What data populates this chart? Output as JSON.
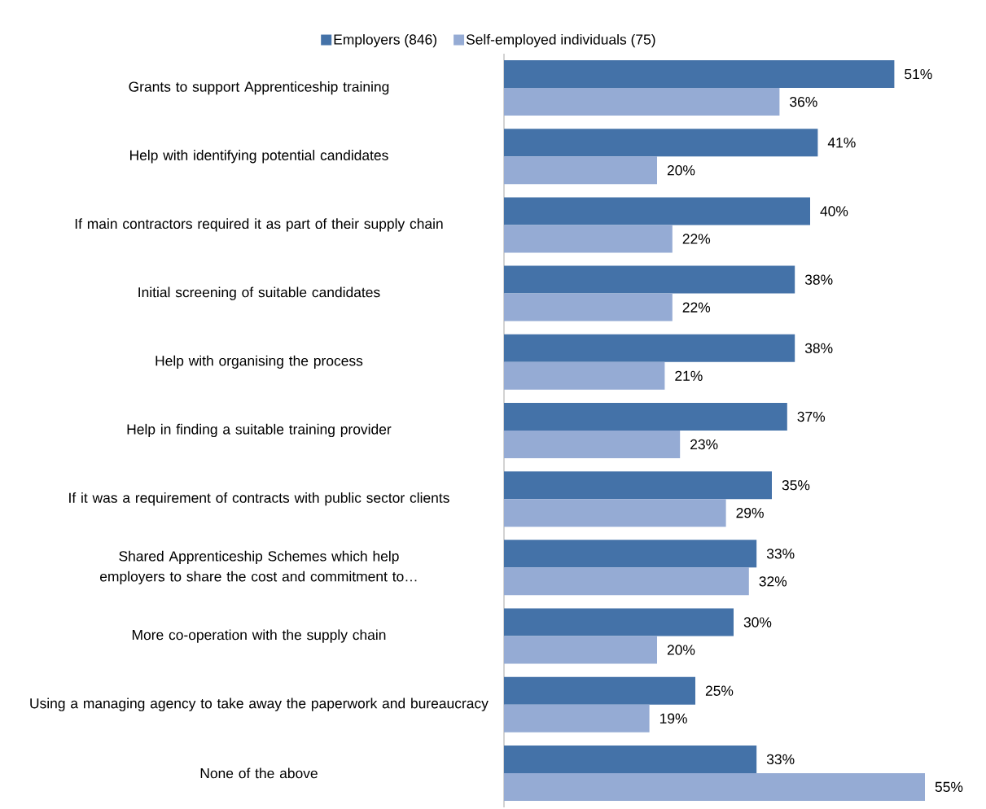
{
  "chart_data": {
    "type": "bar",
    "orientation": "horizontal",
    "legend": "top",
    "categories": [
      "Grants to support Apprenticeship training",
      "Help with identifying potential candidates",
      "If main contractors required it as part of their supply chain",
      "Initial screening of suitable candidates",
      "Help with organising the process",
      "Help in finding a suitable training provider",
      "If it was a requirement of contracts with public sector clients",
      "Shared Apprenticeship Schemes which help employers to share the cost and commitment to…",
      "More co-operation with the supply chain",
      "Using a managing agency to take away the paperwork and bureaucracy",
      "None of the above"
    ],
    "series": [
      {
        "name": "Employers (846)",
        "color": "#4472a8",
        "values": [
          51,
          41,
          40,
          38,
          38,
          37,
          35,
          33,
          30,
          25,
          33
        ],
        "value_labels": [
          "51%",
          "41%",
          "40%",
          "38%",
          "38%",
          "37%",
          "35%",
          "33%",
          "30%",
          "25%",
          "33%"
        ]
      },
      {
        "name": "Self-employed individuals (75)",
        "color": "#95abd4",
        "values": [
          36,
          20,
          22,
          22,
          21,
          23,
          29,
          32,
          20,
          19,
          55
        ],
        "value_labels": [
          "36%",
          "20%",
          "22%",
          "22%",
          "21%",
          "23%",
          "29%",
          "32%",
          "20%",
          "19%",
          "55%"
        ]
      }
    ]
  }
}
